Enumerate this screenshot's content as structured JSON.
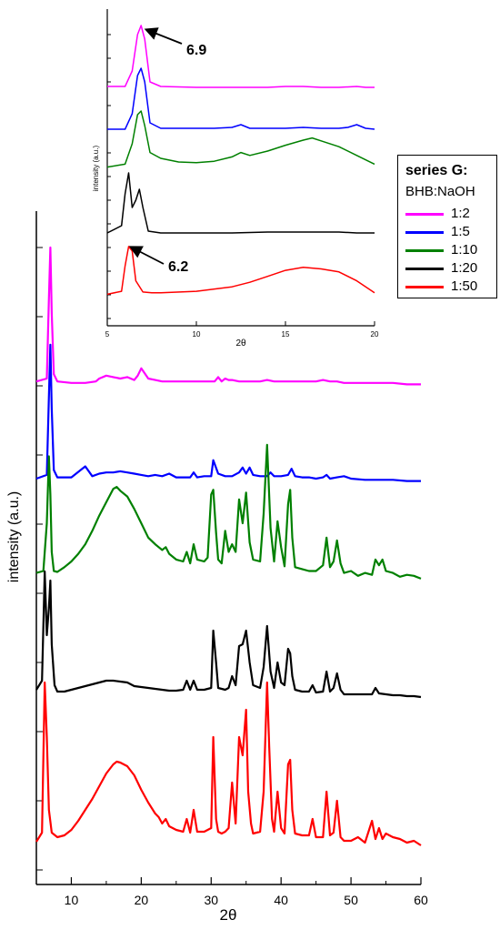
{
  "chart_data": [
    {
      "type": "line",
      "panel": "main",
      "xlabel": "2θ",
      "ylabel": "intensity (a.u.)",
      "xlim": [
        5,
        60
      ],
      "x_ticks": [
        10,
        20,
        30,
        40,
        50,
        60
      ],
      "series": [
        {
          "name": "1:2",
          "color": "#ff00ff",
          "x": [
            5,
            6.5,
            6.8,
            7.0,
            7.2,
            7.5,
            8,
            10,
            12,
            13.5,
            14,
            15,
            16,
            17,
            18,
            18.5,
            19,
            19.5,
            20,
            21,
            22,
            23,
            24,
            25,
            26,
            27,
            28,
            29,
            30,
            30.5,
            31,
            31.5,
            32,
            32.5,
            33,
            34,
            35,
            36,
            37,
            38,
            39,
            40,
            41,
            42,
            43,
            44,
            45,
            46,
            47,
            48,
            49,
            50,
            52,
            54,
            56,
            58,
            60
          ],
          "y": [
            3,
            5,
            60,
            95,
            50,
            8,
            3,
            2,
            2,
            3,
            5,
            7,
            6,
            5,
            6,
            5,
            4,
            7,
            12,
            5,
            4,
            3,
            3,
            3,
            3,
            3,
            3,
            3,
            3,
            3,
            6,
            3,
            5,
            4,
            4,
            3,
            3,
            3,
            3,
            4,
            3,
            3,
            3,
            3,
            3,
            3,
            3,
            4,
            3,
            3,
            2,
            2,
            2,
            2,
            2,
            1,
            1
          ]
        },
        {
          "name": "1:5",
          "color": "#0000ff",
          "x": [
            5,
            6.5,
            6.8,
            7.0,
            7.2,
            7.5,
            8,
            10,
            12,
            13,
            14,
            15,
            16,
            17,
            18,
            19,
            20,
            21,
            22,
            23,
            24,
            25,
            26,
            27,
            27.5,
            28,
            29,
            30,
            30.3,
            31,
            32,
            33,
            34,
            34.5,
            35,
            35.5,
            36,
            37,
            38,
            38.5,
            39,
            40,
            41,
            41.5,
            42,
            43,
            44,
            45,
            46,
            46.5,
            47,
            48,
            49,
            50,
            52,
            54,
            56,
            58,
            60
          ],
          "y": [
            3,
            6,
            70,
            112,
            60,
            10,
            4,
            4,
            13,
            5,
            7,
            8,
            8,
            9,
            8,
            7,
            6,
            5,
            6,
            5,
            7,
            4,
            4,
            4,
            8,
            4,
            5,
            5,
            18,
            7,
            5,
            5,
            8,
            12,
            7,
            12,
            6,
            5,
            5,
            8,
            5,
            5,
            6,
            11,
            5,
            4,
            4,
            3,
            4,
            6,
            3,
            4,
            5,
            3,
            2,
            2,
            2,
            1,
            1
          ]
        },
        {
          "name": "1:10",
          "color": "#008000",
          "x": [
            5,
            6,
            6.5,
            6.8,
            7.0,
            7.2,
            7.5,
            8,
            9,
            10,
            11,
            12,
            13,
            14,
            15,
            16,
            16.5,
            17,
            18,
            19,
            20,
            21,
            22,
            22.5,
            23,
            23.5,
            24,
            25,
            26,
            26.5,
            27,
            27.5,
            28,
            29,
            29.5,
            30,
            30.3,
            30.7,
            31,
            31.5,
            32,
            32.5,
            33,
            33.5,
            34,
            34.5,
            35,
            35.5,
            36,
            37,
            37.5,
            38,
            38.5,
            39,
            39.5,
            40,
            40.5,
            41,
            41.3,
            41.6,
            42,
            43,
            44,
            45,
            46,
            46.5,
            47,
            47.5,
            48,
            48.5,
            49,
            50,
            51,
            52,
            53,
            53.5,
            54,
            54.5,
            55,
            56,
            57,
            58,
            59,
            60
          ],
          "y": [
            8,
            10,
            60,
            130,
            90,
            30,
            10,
            9,
            14,
            20,
            28,
            38,
            52,
            68,
            82,
            96,
            98,
            94,
            88,
            75,
            60,
            45,
            38,
            35,
            32,
            35,
            28,
            22,
            20,
            30,
            18,
            38,
            22,
            20,
            24,
            90,
            95,
            50,
            22,
            18,
            52,
            30,
            38,
            30,
            85,
            60,
            92,
            40,
            22,
            20,
            70,
            142,
            55,
            20,
            62,
            35,
            15,
            80,
            95,
            45,
            14,
            12,
            10,
            10,
            16,
            45,
            14,
            20,
            42,
            18,
            8,
            10,
            5,
            8,
            6,
            22,
            16,
            22,
            10,
            8,
            4,
            6,
            5,
            2
          ]
        },
        {
          "name": "1:20",
          "color": "#000000",
          "x": [
            5,
            5.8,
            6.2,
            6.5,
            6.8,
            7.0,
            7.2,
            7.6,
            8,
            9,
            10,
            12,
            14,
            15,
            16,
            17,
            18,
            19,
            20,
            21,
            22,
            23,
            24,
            25,
            26,
            26.5,
            27,
            27.5,
            28,
            29,
            30,
            30.3,
            30.7,
            31,
            32,
            32.5,
            33,
            33.5,
            34,
            34.5,
            35,
            35.5,
            36,
            37,
            37.5,
            38,
            38.5,
            39,
            39.5,
            40,
            40.5,
            41,
            41.3,
            41.6,
            42,
            43,
            44,
            44.5,
            45,
            46,
            46.5,
            47,
            47.5,
            48,
            48.5,
            49,
            50,
            52,
            53,
            53.5,
            54,
            55,
            56,
            57,
            58,
            59,
            60
          ],
          "y": [
            10,
            20,
            140,
            70,
            100,
            130,
            60,
            15,
            8,
            8,
            10,
            14,
            18,
            20,
            20,
            19,
            18,
            14,
            13,
            12,
            11,
            10,
            9,
            9,
            10,
            20,
            10,
            20,
            10,
            10,
            12,
            75,
            40,
            12,
            10,
            12,
            25,
            15,
            58,
            60,
            75,
            40,
            15,
            12,
            35,
            80,
            30,
            12,
            40,
            18,
            15,
            55,
            50,
            25,
            10,
            8,
            8,
            15,
            7,
            8,
            30,
            8,
            12,
            28,
            10,
            5,
            5,
            5,
            5,
            12,
            6,
            5,
            4,
            4,
            3,
            3,
            2
          ]
        },
        {
          "name": "1:50",
          "color": "#ff0000",
          "x": [
            5,
            5.8,
            6.2,
            6.5,
            6.8,
            7.2,
            8,
            9,
            10,
            11,
            12,
            13,
            14,
            15,
            16,
            16.5,
            17,
            18,
            19,
            20,
            21,
            22,
            22.5,
            23,
            23.5,
            24,
            25,
            26,
            26.5,
            27,
            27.5,
            28,
            29,
            30,
            30.3,
            30.7,
            31,
            31.5,
            32,
            32.5,
            33,
            33.5,
            34,
            34.5,
            35,
            35.3,
            35.7,
            36,
            37,
            37.5,
            38,
            38.3,
            38.7,
            39,
            39.5,
            40,
            40.5,
            41,
            41.3,
            41.6,
            42,
            43,
            44,
            44.5,
            45,
            46,
            46.5,
            47,
            47.5,
            48,
            48.5,
            49,
            50,
            51,
            52,
            53,
            53.5,
            54,
            54.5,
            55,
            56,
            57,
            58,
            59,
            60
          ],
          "y": [
            5,
            15,
            180,
            120,
            40,
            15,
            10,
            12,
            18,
            28,
            40,
            52,
            66,
            80,
            90,
            93,
            92,
            88,
            78,
            62,
            48,
            36,
            32,
            25,
            30,
            22,
            18,
            16,
            30,
            15,
            40,
            16,
            16,
            20,
            120,
            30,
            16,
            14,
            16,
            20,
            70,
            25,
            120,
            100,
            150,
            60,
            25,
            14,
            16,
            60,
            180,
            110,
            30,
            16,
            60,
            20,
            14,
            90,
            95,
            40,
            14,
            12,
            12,
            30,
            10,
            10,
            60,
            12,
            15,
            50,
            10,
            6,
            6,
            10,
            4,
            28,
            8,
            20,
            8,
            14,
            10,
            8,
            4,
            6,
            1
          ]
        }
      ]
    },
    {
      "type": "line",
      "panel": "inset",
      "xlabel": "2θ",
      "ylabel": "intensity (a.u.)",
      "xlim": [
        5,
        20
      ],
      "x_ticks": [
        5,
        10,
        15,
        20
      ],
      "annotations": [
        {
          "text": "6.9",
          "x": 6.9,
          "series": "1:2"
        },
        {
          "text": "6.2",
          "x": 6.2,
          "series": "1:50"
        }
      ],
      "series": [
        {
          "name": "1:2",
          "color": "#ff00ff",
          "x": [
            5,
            6,
            6.4,
            6.7,
            6.9,
            7.1,
            7.4,
            8,
            10,
            12,
            14,
            15,
            16,
            17,
            18,
            19,
            19.5,
            20
          ],
          "y": [
            3,
            3,
            20,
            60,
            70,
            55,
            8,
            3,
            2,
            2,
            2,
            3,
            3,
            2,
            2,
            3,
            2,
            2
          ]
        },
        {
          "name": "1:5",
          "color": "#0000ff",
          "x": [
            5,
            6,
            6.4,
            6.7,
            6.9,
            7.1,
            7.4,
            8,
            10,
            11,
            12,
            12.5,
            13,
            14,
            15,
            16,
            17,
            18,
            18.5,
            19,
            19.5,
            20
          ],
          "y": [
            3,
            3,
            20,
            62,
            70,
            55,
            10,
            4,
            4,
            4,
            5,
            8,
            4,
            4,
            4,
            5,
            4,
            4,
            5,
            8,
            4,
            3
          ]
        },
        {
          "name": "1:10",
          "color": "#008000",
          "x": [
            5,
            6,
            6.4,
            6.7,
            6.9,
            7.1,
            7.4,
            8,
            9,
            10,
            11,
            12,
            12.5,
            13,
            14,
            15,
            16,
            16.5,
            17,
            18,
            19,
            20
          ],
          "y": [
            8,
            12,
            40,
            80,
            85,
            65,
            28,
            20,
            15,
            14,
            16,
            22,
            28,
            24,
            30,
            38,
            45,
            48,
            44,
            36,
            24,
            12
          ]
        },
        {
          "name": "1:20",
          "color": "#000000",
          "x": [
            5,
            5.8,
            6,
            6.2,
            6.4,
            6.6,
            6.8,
            7.0,
            7.3,
            8,
            10,
            12,
            14,
            15,
            16,
            17,
            18,
            19,
            20
          ],
          "y": [
            2,
            10,
            45,
            68,
            30,
            38,
            50,
            30,
            4,
            2,
            2,
            2,
            3,
            3,
            3,
            3,
            3,
            2,
            2
          ]
        },
        {
          "name": "1:50",
          "color": "#ff0000",
          "x": [
            5,
            5.8,
            6,
            6.2,
            6.4,
            6.6,
            7,
            7.5,
            8,
            10,
            12,
            13,
            14,
            15,
            16,
            17,
            18,
            19,
            20
          ],
          "y": [
            2,
            6,
            40,
            66,
            60,
            20,
            5,
            4,
            4,
            6,
            12,
            18,
            26,
            34,
            38,
            36,
            32,
            20,
            4
          ]
        }
      ]
    }
  ],
  "legend": {
    "title": "series G:",
    "subtitle": "BHB:NaOH",
    "items": [
      {
        "label": "1:2",
        "color": "#ff00ff"
      },
      {
        "label": "1:5",
        "color": "#0000ff"
      },
      {
        "label": "1:10",
        "color": "#008000"
      },
      {
        "label": "1:20",
        "color": "#000000"
      },
      {
        "label": "1:50",
        "color": "#ff0000"
      }
    ]
  }
}
